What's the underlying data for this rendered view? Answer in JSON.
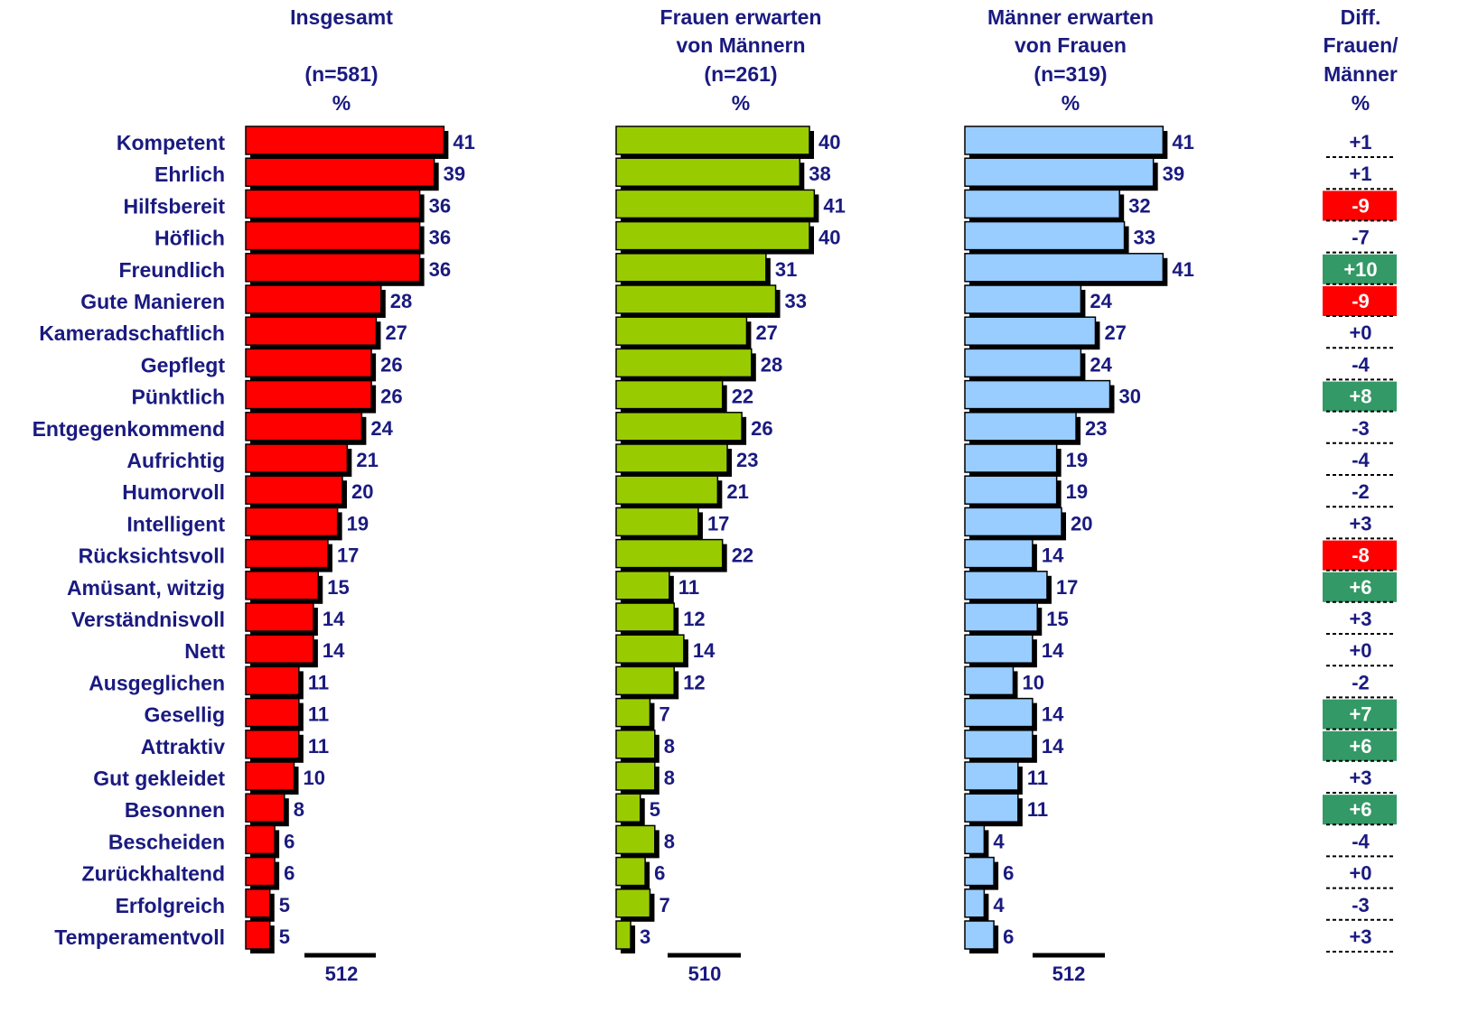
{
  "chart_data": {
    "type": "bar",
    "orientation": "horizontal",
    "categories": [
      "Kompetent",
      "Ehrlich",
      "Hilfsbereit",
      "Höflich",
      "Freundlich",
      "Gute Manieren",
      "Kameradschaftlich",
      "Gepflegt",
      "Pünktlich",
      "Entgegenkommend",
      "Aufrichtig",
      "Humorvoll",
      "Intelligent",
      "Rücksichtsvoll",
      "Amüsant, witzig",
      "Verständnisvoll",
      "Nett",
      "Ausgeglichen",
      "Gesellig",
      "Attraktiv",
      "Gut gekleidet",
      "Besonnen",
      "Bescheiden",
      "Zurückhaltend",
      "Erfolgreich",
      "Temperamentvoll"
    ],
    "series": [
      {
        "name": "Insgesamt",
        "header": [
          "Insgesamt",
          "",
          "(n=581)",
          "%"
        ],
        "color": "#ff0000",
        "base": "512",
        "values": [
          41,
          39,
          36,
          36,
          36,
          28,
          27,
          26,
          26,
          24,
          21,
          20,
          19,
          17,
          15,
          14,
          14,
          11,
          11,
          11,
          10,
          8,
          6,
          6,
          5,
          5
        ]
      },
      {
        "name": "Frauen erwarten von Männern",
        "header": [
          "Frauen erwarten",
          "von Männern",
          "(n=261)",
          "%"
        ],
        "color": "#99cc00",
        "base": "510",
        "values": [
          40,
          38,
          41,
          40,
          31,
          33,
          27,
          28,
          22,
          26,
          23,
          21,
          17,
          22,
          11,
          12,
          14,
          12,
          7,
          8,
          8,
          5,
          8,
          6,
          7,
          3
        ]
      },
      {
        "name": "Männer erwarten von Frauen",
        "header": [
          "Männer erwarten",
          "von Frauen",
          "(n=319)",
          "%"
        ],
        "color": "#99ccff",
        "base": "512",
        "values": [
          41,
          39,
          32,
          33,
          41,
          24,
          27,
          24,
          30,
          23,
          19,
          19,
          20,
          14,
          17,
          15,
          14,
          10,
          14,
          14,
          11,
          11,
          4,
          6,
          4,
          6
        ]
      }
    ],
    "diff": {
      "header": [
        "Diff.",
        "Frauen/",
        "Männer",
        "%"
      ],
      "values": [
        "+1",
        "+1",
        "-9",
        "-7",
        "+10",
        "-9",
        "+0",
        "-4",
        "+8",
        "-3",
        "-4",
        "-2",
        "+3",
        "-8",
        "+6",
        "+3",
        "+0",
        "-2",
        "+7",
        "+6",
        "+3",
        "+6",
        "-4",
        "+0",
        "-3",
        "+3"
      ],
      "highlight": [
        "",
        "",
        "red",
        "",
        "green",
        "red",
        "",
        "",
        "green",
        "",
        "",
        "",
        "",
        "red",
        "green",
        "",
        "",
        "",
        "green",
        "green",
        "",
        "green",
        "",
        "",
        "",
        ""
      ],
      "highlight_colors": {
        "red": "#ff0000",
        "green": "#339966"
      }
    },
    "xlim": [
      0,
      41
    ]
  }
}
